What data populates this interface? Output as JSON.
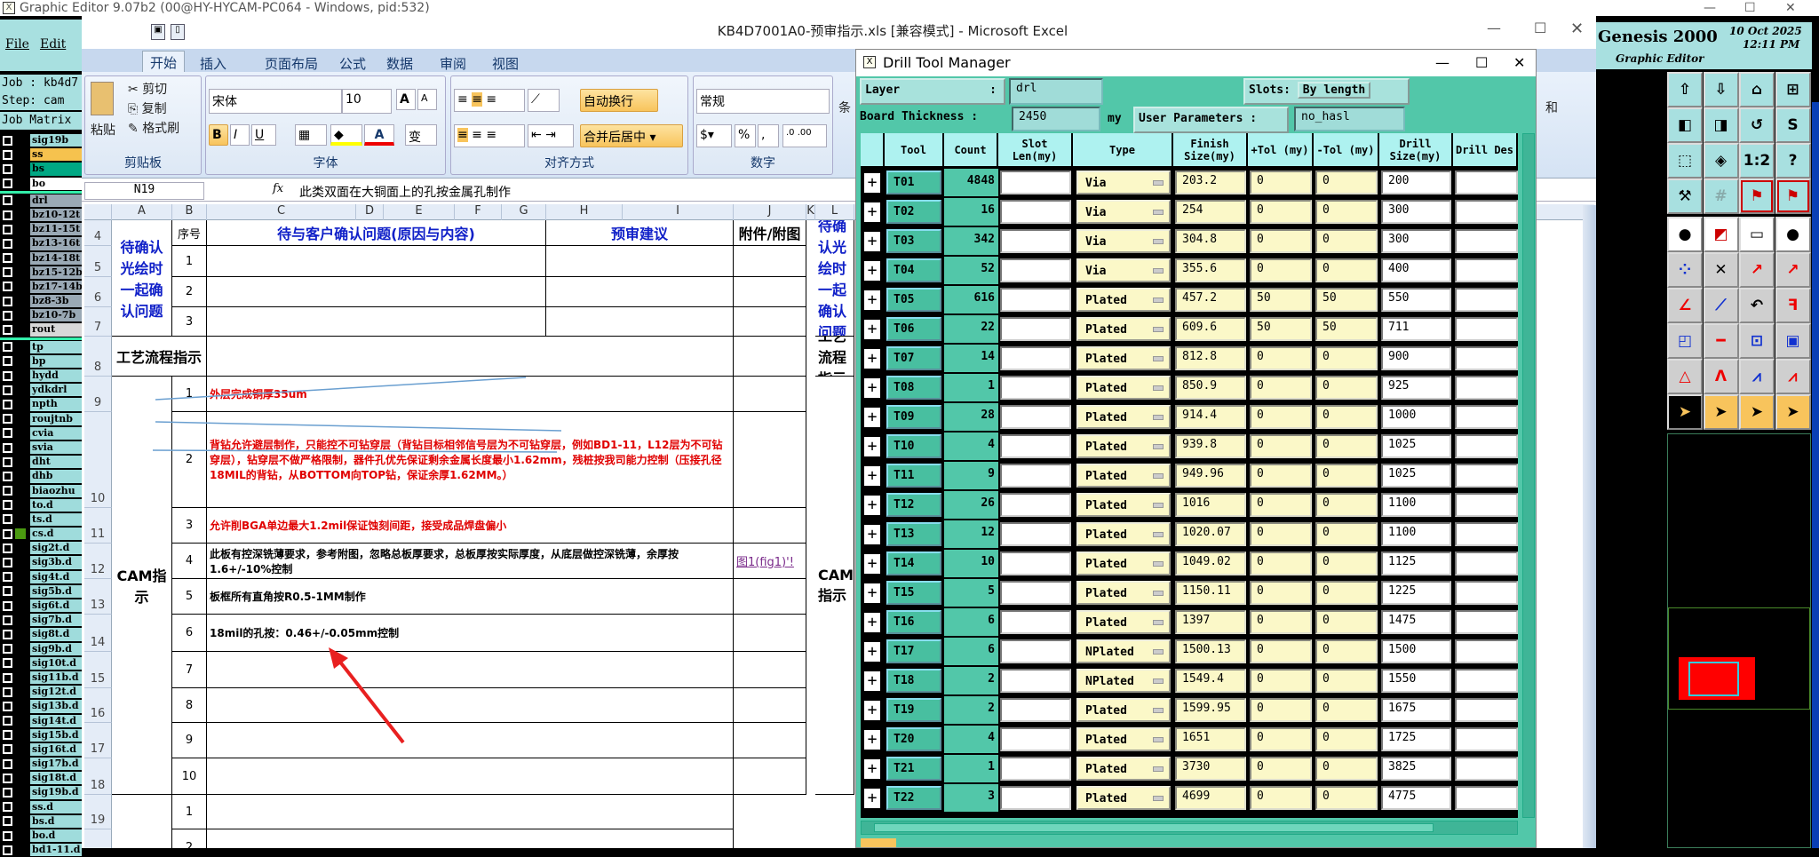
{
  "genesis": {
    "window_title": "Graphic Editor 9.07b2 (00@HY-HYCAM-PC064 - Windows, pid:532)",
    "menu": [
      "File",
      "Edit"
    ],
    "job": "Job : kb4d7",
    "step": "Step: cam",
    "job_matrix": "Job Matrix",
    "product": "Genesis 2000",
    "subtitle": "Graphic Editor",
    "date": "10 Oct 2025",
    "time": "12:11 PM",
    "layers_group1": [
      {
        "name": "sig19b",
        "color": "#9fdcdc"
      },
      {
        "name": "ss",
        "color": "#f6c24e"
      },
      {
        "name": "bs",
        "color": "#00a884"
      },
      {
        "name": "bo",
        "color": "#ffffff"
      }
    ],
    "layers_group2": [
      {
        "name": "drl",
        "color": "#9aa9b5"
      },
      {
        "name": "bz10-12t",
        "color": "#9aa9b5"
      },
      {
        "name": "bz11-15t",
        "color": "#9aa9b5"
      },
      {
        "name": "bz13-16t",
        "color": "#9aa9b5"
      },
      {
        "name": "bz14-18t",
        "color": "#9aa9b5"
      },
      {
        "name": "bz15-12b",
        "color": "#9aa9b5"
      },
      {
        "name": "bz17-14b",
        "color": "#9aa9b5"
      },
      {
        "name": "bz8-3b",
        "color": "#9aa9b5"
      },
      {
        "name": "bz10-7b",
        "color": "#9aa9b5"
      },
      {
        "name": "rout",
        "color": "#d8d8d8"
      }
    ],
    "layers_group3": [
      "tp",
      "bp",
      "hydd",
      "ydkdrl",
      "npth",
      "roujtnb",
      "cvia",
      "svia",
      "dht",
      "dhb",
      "biaozhu",
      "to.d",
      "ts.d",
      "cs.d",
      "sig2t.d",
      "sig3b.d",
      "sig4t.d",
      "sig5b.d",
      "sig6t.d",
      "sig7b.d",
      "sig8t.d",
      "sig9b.d",
      "sig10t.d",
      "sig11b.d",
      "sig12t.d",
      "sig13b.d",
      "sig14t.d",
      "sig15b.d",
      "sig16t.d",
      "sig17b.d",
      "sig18t.d",
      "sig19b.d",
      "ss.d",
      "bs.d",
      "bo.d",
      "bd1-11.d"
    ],
    "active_layer_marker": "cs.d",
    "toolbar_icons": [
      "open-step-icon",
      "save-step-icon",
      "home-icon",
      "grid-xy-icon",
      "pan-left-icon",
      "pan-right-icon",
      "undo-view-icon",
      "scroll-icon",
      "zoom-fit-icon",
      "zoom-center-icon",
      "scale-1-2-icon",
      "help-icon",
      "tools-palette-icon",
      "grid-icon",
      "route-net-red-icon",
      "route-net-black-icon",
      "pad-move-icon",
      "select-region-icon",
      "ruler-icon",
      "pad-dot-icon",
      "connect-nodes-icon",
      "delete-node-icon",
      "move-point-hollow-icon",
      "move-point-solid-icon",
      "angle-line-icon",
      "line-draw-icon",
      "arc-icon",
      "mirror-icon",
      "copy-pad-icon",
      "line-segment-icon",
      "measure-icon",
      "shapes-icon",
      "triangle-icon",
      "arch-up-icon",
      "arch-blue-icon",
      "arch-cross-icon",
      "pointer-icon",
      "select-box-icon",
      "select-poly-icon",
      "select-net-icon"
    ]
  },
  "excel": {
    "title": "KB4D7001A0-预审指示.xls  [兼容模式] - Microsoft Excel",
    "tabs": [
      "开始",
      "插入",
      "页面布局",
      "公式",
      "数据",
      "审阅",
      "视图"
    ],
    "active_tab": "开始",
    "clipboard": {
      "paste": "粘贴",
      "cut": "剪切",
      "copy": "复制",
      "format_painter": "格式刷",
      "label": "剪贴板"
    },
    "font": {
      "name": "宋体",
      "size": "10",
      "label": "字体",
      "bold": "B",
      "italic": "I",
      "underline": "U",
      "grow": "A",
      "shrink": "A",
      "phonetic": "变"
    },
    "alignment": {
      "wrap": "自动换行",
      "merge": "合并后居中",
      "label": "对齐方式"
    },
    "number": {
      "format": "常规",
      "label": "数字",
      "percent": "%",
      "comma": ","
    },
    "extra_group": "条",
    "extra_group2": "和",
    "name_box": "N19",
    "fx": "fx",
    "formula": "此类双面在大铜面上的孔按金属孔制作",
    "columns": [
      "A",
      "B",
      "C",
      "D",
      "E",
      "F",
      "G",
      "H",
      "I",
      "J",
      "K",
      "L"
    ],
    "rows": [
      "4",
      "5",
      "6",
      "7",
      "8",
      "9",
      "10",
      "11",
      "12",
      "13",
      "14",
      "15",
      "16",
      "17",
      "18",
      "19",
      "20"
    ],
    "section1": "待确认光绘时一起确认问题",
    "hdr_no": "序号",
    "hdr_issue": "待与客户确认问题(原因与内容)",
    "hdr_suggest": "预审建议",
    "hdr_attach": "附件/附图",
    "section2": "工艺流程指示",
    "section3": "CAM指示",
    "numbers": [
      "1",
      "2",
      "3",
      "4",
      "5",
      "6",
      "7",
      "8",
      "9",
      "10"
    ],
    "cam_items": [
      "外层完成铜厚35um",
      "背钻允许避层制作，只能控不可钻穿层（背钻目标相邻信号层为不可钻穿层，例如BD1-11，L12层为不可钻穿层），钻穿层不做严格限制，器件孔优先保证剩余金属长度最小1.62mm，残桩按我司能力控制（压接孔径18MIL的背钻，从BOTTOM向TOP钻，保证余厚1.62MM。）",
      "允许削BGA单边最大1.2mil保证蚀刻间距，接受成品焊盘偏小",
      "此板有控深铣薄要求，参考附图，忽略总板厚要求，总板厚按实际厚度，从底层做控深铣薄，余厚按1.6+/-10%控制",
      "板框所有直角按R0.5-1MM制作",
      "18mil的孔按：0.46+/-0.05mm控制"
    ],
    "attach_link": "图1(fig1)'!",
    "row19_no": "1",
    "row20_no": "2"
  },
  "dtm": {
    "title": "Drill Tool Manager",
    "layer_label": "Layer",
    "layer_value": "drl",
    "slots_label": "Slots:",
    "slots_value": "By length",
    "board_thickness_label": "Board Thickness :",
    "board_thickness_value": "2450",
    "board_thickness_unit": "my",
    "user_params_label": "User Parameters :",
    "user_params_value": "no_hasl",
    "headers": [
      "Tool",
      "Count",
      "Slot Len(my)",
      "Type",
      "Finish Size(my)",
      "+Tol (my)",
      "-Tol (my)",
      "Drill Size(my)",
      "Drill Des"
    ],
    "rows": [
      {
        "tool": "T01",
        "count": "4848",
        "type": "Via",
        "finish": "203.2",
        "ptol": "0",
        "ntol": "0",
        "drill": "200"
      },
      {
        "tool": "T02",
        "count": "16",
        "type": "Via",
        "finish": "254",
        "ptol": "0",
        "ntol": "0",
        "drill": "300"
      },
      {
        "tool": "T03",
        "count": "342",
        "type": "Via",
        "finish": "304.8",
        "ptol": "0",
        "ntol": "0",
        "drill": "300"
      },
      {
        "tool": "T04",
        "count": "52",
        "type": "Via",
        "finish": "355.6",
        "ptol": "0",
        "ntol": "0",
        "drill": "400"
      },
      {
        "tool": "T05",
        "count": "616",
        "type": "Plated",
        "finish": "457.2",
        "ptol": "50",
        "ntol": "50",
        "drill": "550"
      },
      {
        "tool": "T06",
        "count": "22",
        "type": "Plated",
        "finish": "609.6",
        "ptol": "50",
        "ntol": "50",
        "drill": "711"
      },
      {
        "tool": "T07",
        "count": "14",
        "type": "Plated",
        "finish": "812.8",
        "ptol": "0",
        "ntol": "0",
        "drill": "900"
      },
      {
        "tool": "T08",
        "count": "1",
        "type": "Plated",
        "finish": "850.9",
        "ptol": "0",
        "ntol": "0",
        "drill": "925"
      },
      {
        "tool": "T09",
        "count": "28",
        "type": "Plated",
        "finish": "914.4",
        "ptol": "0",
        "ntol": "0",
        "drill": "1000"
      },
      {
        "tool": "T10",
        "count": "4",
        "type": "Plated",
        "finish": "939.8",
        "ptol": "0",
        "ntol": "0",
        "drill": "1025"
      },
      {
        "tool": "T11",
        "count": "9",
        "type": "Plated",
        "finish": "949.96",
        "ptol": "0",
        "ntol": "0",
        "drill": "1025"
      },
      {
        "tool": "T12",
        "count": "26",
        "type": "Plated",
        "finish": "1016",
        "ptol": "0",
        "ntol": "0",
        "drill": "1100"
      },
      {
        "tool": "T13",
        "count": "12",
        "type": "Plated",
        "finish": "1020.07",
        "ptol": "0",
        "ntol": "0",
        "drill": "1100"
      },
      {
        "tool": "T14",
        "count": "10",
        "type": "Plated",
        "finish": "1049.02",
        "ptol": "0",
        "ntol": "0",
        "drill": "1125"
      },
      {
        "tool": "T15",
        "count": "5",
        "type": "Plated",
        "finish": "1150.11",
        "ptol": "0",
        "ntol": "0",
        "drill": "1225"
      },
      {
        "tool": "T16",
        "count": "6",
        "type": "Plated",
        "finish": "1397",
        "ptol": "0",
        "ntol": "0",
        "drill": "1475"
      },
      {
        "tool": "T17",
        "count": "6",
        "type": "NPlated",
        "finish": "1500.13",
        "ptol": "0",
        "ntol": "0",
        "drill": "1500"
      },
      {
        "tool": "T18",
        "count": "2",
        "type": "NPlated",
        "finish": "1549.4",
        "ptol": "0",
        "ntol": "0",
        "drill": "1550"
      },
      {
        "tool": "T19",
        "count": "2",
        "type": "Plated",
        "finish": "1599.95",
        "ptol": "0",
        "ntol": "0",
        "drill": "1675"
      },
      {
        "tool": "T20",
        "count": "4",
        "type": "Plated",
        "finish": "1651",
        "ptol": "0",
        "ntol": "0",
        "drill": "1725"
      },
      {
        "tool": "T21",
        "count": "1",
        "type": "Plated",
        "finish": "3730",
        "ptol": "0",
        "ntol": "0",
        "drill": "3825"
      },
      {
        "tool": "T22",
        "count": "3",
        "type": "Plated",
        "finish": "4699",
        "ptol": "0",
        "ntol": "0",
        "drill": "4775"
      }
    ]
  },
  "colors": {
    "dtm_bg": "#52c7a9",
    "dtm_header": "#aef2f0",
    "dtm_input_yellow": "#fbf8c8",
    "excel_blue_text": "#1020c8",
    "excel_red_text": "#e00000",
    "annotation_arrow": "#e82020"
  }
}
